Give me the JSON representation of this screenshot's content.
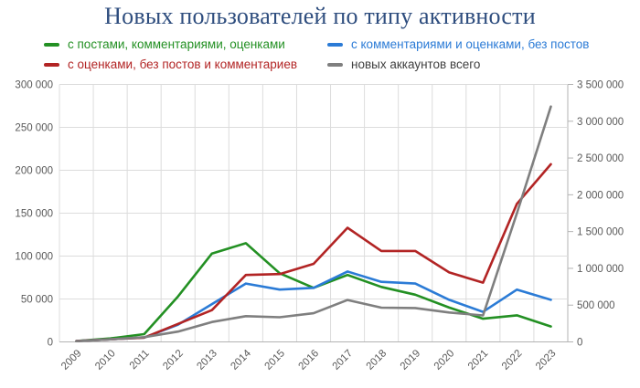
{
  "chart_data": {
    "type": "line",
    "title": "Новых пользователей по типу активности",
    "x_labels": [
      "2009",
      "2010",
      "2011",
      "2012",
      "2013",
      "2014",
      "2015",
      "2016",
      "2017",
      "2018",
      "2019",
      "2020",
      "2021",
      "2022",
      "2023"
    ],
    "series": [
      {
        "name": "с постами, комментариями, оценками",
        "color": "#239023",
        "axis": "left",
        "values": [
          1000,
          4000,
          9000,
          53000,
          103000,
          115000,
          80000,
          63000,
          78000,
          64000,
          55000,
          40000,
          27000,
          31000,
          18000
        ]
      },
      {
        "name": "с комментариями и оценками, без постов",
        "color": "#2b7bd6",
        "axis": "left",
        "values": [
          1000,
          3000,
          5000,
          20000,
          44000,
          68000,
          61000,
          63000,
          82000,
          70000,
          68000,
          49000,
          35000,
          61000,
          49000
        ]
      },
      {
        "name": "с оценками, без постов и комментариев",
        "color": "#b22424",
        "axis": "left",
        "values": [
          1000,
          3000,
          5000,
          21000,
          37000,
          78000,
          79000,
          91000,
          133000,
          106000,
          106000,
          81000,
          69000,
          161000,
          207000
        ]
      },
      {
        "name": "новых аккаунтов всего",
        "color": "#7f7f7f",
        "label_color": "#3f3f3f",
        "axis": "right",
        "values": [
          10000,
          35000,
          65000,
          140000,
          270000,
          350000,
          335000,
          390000,
          570000,
          465000,
          460000,
          400000,
          360000,
          1750000,
          3200000
        ]
      }
    ],
    "left_axis": {
      "min": 0,
      "max": 300000,
      "step": 50000,
      "tick_labels": [
        "0",
        "50 000",
        "100 000",
        "150 000",
        "200 000",
        "250 000",
        "300 000"
      ]
    },
    "right_axis": {
      "min": 0,
      "max": 3500000,
      "step": 500000,
      "tick_labels": [
        "0",
        "500 000",
        "1 000 000",
        "1 500 000",
        "2 000 000",
        "2 500 000",
        "3 000 000",
        "3 500 000"
      ]
    },
    "legend_position": "top",
    "grid": true,
    "colors": {
      "title": "#2e4d7e",
      "grid": "#dcdcdc",
      "axis": "#b3b3b3",
      "tick_text": "#595959"
    }
  }
}
